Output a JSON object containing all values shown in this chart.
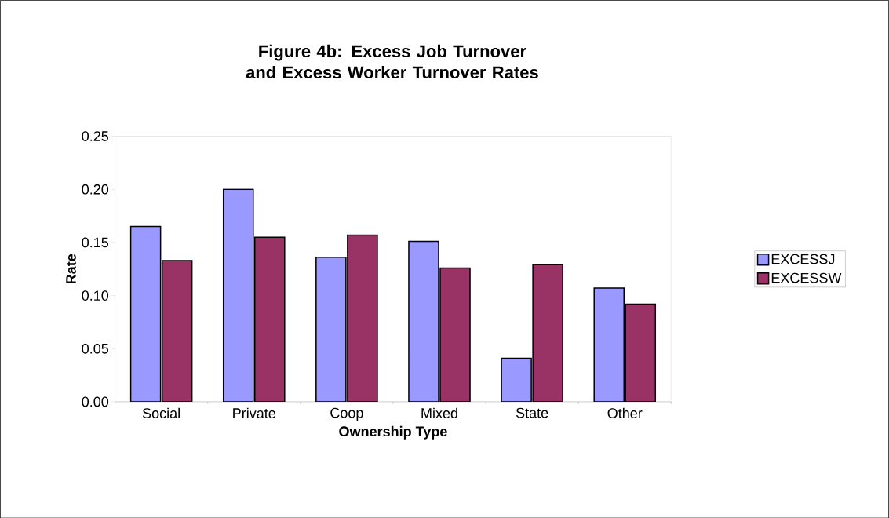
{
  "chart_data": {
    "type": "bar",
    "title": "Figure 4b: Excess Job Turnover and Excess Worker Turnover Rates",
    "xlabel": "Ownership Type",
    "ylabel": "Rate",
    "categories": [
      "Social",
      "Private",
      "Coop",
      "Mixed",
      "State",
      "Other"
    ],
    "series": [
      {
        "name": "EXCESSJ",
        "color": "#9999ff",
        "values": [
          0.165,
          0.2,
          0.136,
          0.151,
          0.041,
          0.107
        ]
      },
      {
        "name": "EXCESSW",
        "color": "#993366",
        "values": [
          0.133,
          0.155,
          0.157,
          0.126,
          0.129,
          0.092
        ]
      }
    ],
    "ylim": [
      0,
      0.25
    ],
    "yticks": [
      {
        "value": 0,
        "label": "0.00"
      },
      {
        "value": 0.05,
        "label": "0.05"
      },
      {
        "value": 0.1,
        "label": "0.10"
      },
      {
        "value": 0.15,
        "label": "0.15"
      },
      {
        "value": 0.2,
        "label": "0.20"
      },
      {
        "value": 0.25,
        "label": "0.25"
      }
    ],
    "grid": false,
    "legend": "right"
  }
}
